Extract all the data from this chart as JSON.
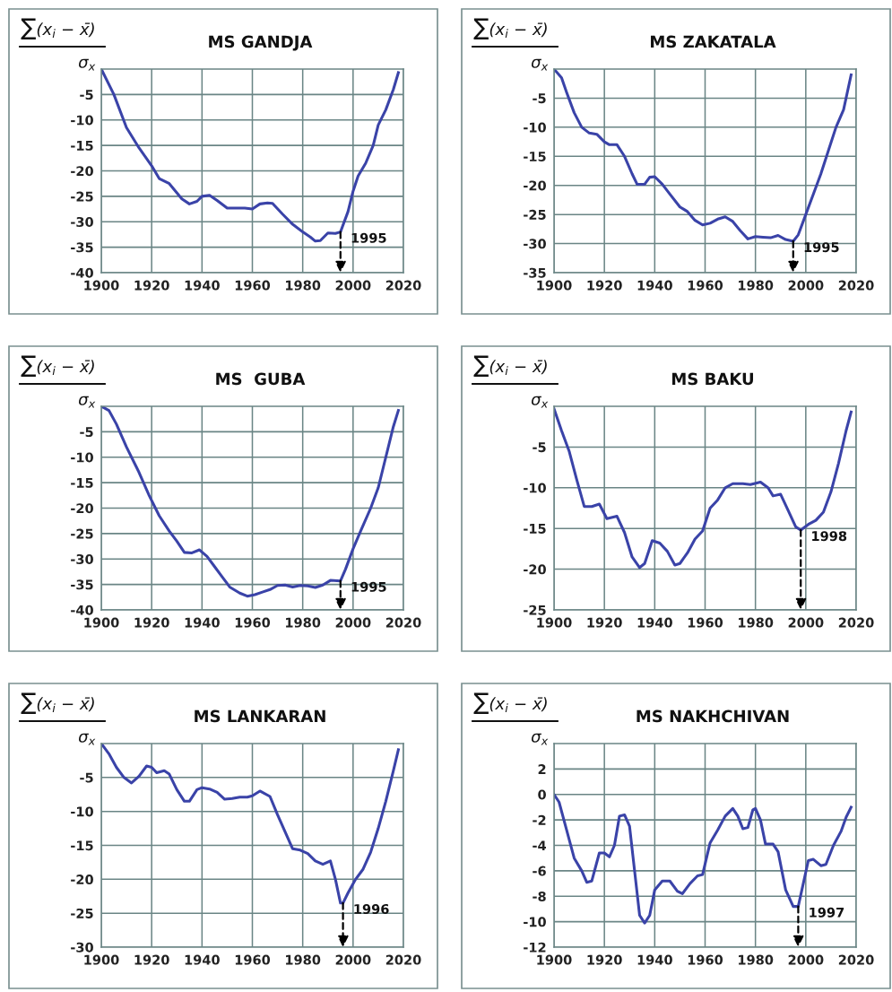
{
  "chart_data": [
    {
      "type": "line",
      "title": "MS GANDJA",
      "ylabel": "∑(x$_{i}$ − x̄)\nσ$_{x}$",
      "xlim": [
        1900,
        2020
      ],
      "xticks": [
        1900,
        1920,
        1940,
        1960,
        1980,
        2000,
        2020
      ],
      "ylim": [
        -40,
        0
      ],
      "yticks": [
        -40,
        -35,
        -30,
        -25,
        -20,
        -15,
        -10,
        -5
      ],
      "grid": true,
      "marker": "none",
      "line_style": "solid",
      "series": [
        {
          "color": "#3a43a8",
          "x": [
            1900,
            1905,
            1910,
            1915,
            1920,
            1923,
            1927,
            1932,
            1935,
            1938,
            1940,
            1943,
            1946,
            1950,
            1953,
            1957,
            1960,
            1963,
            1966,
            1968,
            1972,
            1976,
            1980,
            1983,
            1985,
            1987,
            1990,
            1993,
            1995,
            1998,
            2000,
            2002,
            2005,
            2008,
            2010,
            2013,
            2016,
            2018
          ],
          "values": [
            0,
            -5,
            -11.5,
            -15.5,
            -19,
            -21.5,
            -22.5,
            -25.5,
            -26.5,
            -26,
            -25,
            -24.8,
            -25.8,
            -27.3,
            -27.3,
            -27.3,
            -27.5,
            -26.5,
            -26.3,
            -26.4,
            -28.5,
            -30.5,
            -32,
            -33,
            -33.8,
            -33.7,
            -32.2,
            -32.3,
            -32,
            -28,
            -24,
            -21,
            -18.5,
            -15,
            -11,
            -8,
            -4,
            -0.7
          ]
        }
      ],
      "annotations": [
        {
          "text": "1995",
          "x": 1995,
          "y": -32
        }
      ]
    },
    {
      "type": "line",
      "title": "MS ZAKATALA",
      "ylabel": "∑(x$_{i}$ − x̄)\nσ$_{x}$",
      "xlim": [
        1900,
        2020
      ],
      "xticks": [
        1900,
        1920,
        1940,
        1960,
        1980,
        2000,
        2020
      ],
      "ylim": [
        -35,
        0
      ],
      "yticks": [
        -35,
        -30,
        -25,
        -20,
        -15,
        -10,
        -5
      ],
      "grid": true,
      "marker": "none",
      "line_style": "solid",
      "series": [
        {
          "color": "#3a43a8",
          "x": [
            1900,
            1903,
            1905,
            1908,
            1911,
            1914,
            1917,
            1920,
            1922,
            1925,
            1928,
            1931,
            1933,
            1936,
            1938,
            1940,
            1943,
            1946,
            1950,
            1953,
            1956,
            1959,
            1962,
            1965,
            1968,
            1971,
            1974,
            1977,
            1980,
            1983,
            1986,
            1989,
            1992,
            1995,
            1997,
            2000,
            2003,
            2006,
            2009,
            2012,
            2015,
            2018
          ],
          "values": [
            0,
            -1.5,
            -4,
            -7.5,
            -10,
            -11,
            -11.2,
            -12.5,
            -13,
            -13,
            -15,
            -18,
            -19.8,
            -19.8,
            -18.6,
            -18.5,
            -19.8,
            -21.5,
            -23.7,
            -24.5,
            -26,
            -26.8,
            -26.5,
            -25.8,
            -25.4,
            -26.2,
            -27.8,
            -29.2,
            -28.8,
            -28.9,
            -29,
            -28.6,
            -29.3,
            -29.6,
            -28.5,
            -25,
            -21.5,
            -18,
            -14,
            -10,
            -7,
            -1
          ]
        }
      ],
      "annotations": [
        {
          "text": "1995",
          "x": 1995,
          "y": -29.6
        }
      ]
    },
    {
      "type": "line",
      "title": "MS  GUBA",
      "ylabel": "∑(x$_{i}$ − x̄)\nσ$_{x}$",
      "xlim": [
        1900,
        2020
      ],
      "xticks": [
        1900,
        1920,
        1940,
        1960,
        1980,
        2000,
        2020
      ],
      "ylim": [
        -40,
        0
      ],
      "yticks": [
        -40,
        -35,
        -30,
        -25,
        -20,
        -15,
        -10,
        -5
      ],
      "grid": true,
      "marker": "none",
      "line_style": "solid",
      "series": [
        {
          "color": "#3a43a8",
          "x": [
            1900,
            1903,
            1906,
            1910,
            1915,
            1919,
            1923,
            1927,
            1930,
            1933,
            1936,
            1939,
            1942,
            1945,
            1948,
            1951,
            1955,
            1958,
            1961,
            1964,
            1967,
            1970,
            1973,
            1976,
            1979,
            1982,
            1985,
            1988,
            1991,
            1995,
            1997,
            2000,
            2003,
            2007,
            2010,
            2013,
            2016,
            2018
          ],
          "values": [
            0,
            -0.8,
            -3.5,
            -8,
            -13,
            -17.5,
            -21.5,
            -24.5,
            -26.5,
            -28.7,
            -28.8,
            -28.2,
            -29.5,
            -31.5,
            -33.5,
            -35.5,
            -36.7,
            -37.3,
            -37,
            -36.5,
            -36,
            -35.2,
            -35.1,
            -35.5,
            -35.2,
            -35.3,
            -35.6,
            -35.1,
            -34.2,
            -34.3,
            -32,
            -28,
            -24.5,
            -20,
            -16,
            -10,
            -4,
            -0.8
          ]
        }
      ],
      "annotations": [
        {
          "text": "1995",
          "x": 1995,
          "y": -34.3
        }
      ]
    },
    {
      "type": "line",
      "title": "MS BAKU",
      "ylabel": "∑(x$_{i}$ − x̄)\nσ$_{x}$",
      "xlim": [
        1900,
        2020
      ],
      "xticks": [
        1900,
        1920,
        1940,
        1960,
        1980,
        2000,
        2020
      ],
      "ylim": [
        -25,
        0
      ],
      "yticks": [
        -25,
        -20,
        -15,
        -10,
        -5
      ],
      "grid": true,
      "marker": "none",
      "line_style": "solid",
      "series": [
        {
          "color": "#3a43a8",
          "x": [
            1900,
            1903,
            1906,
            1909,
            1912,
            1915,
            1918,
            1921,
            1925,
            1928,
            1931,
            1934,
            1936,
            1939,
            1942,
            1945,
            1948,
            1950,
            1953,
            1956,
            1959,
            1962,
            1965,
            1968,
            1971,
            1975,
            1978,
            1982,
            1985,
            1987,
            1990,
            1993,
            1996,
            1998,
            2001,
            2004,
            2007,
            2010,
            2013,
            2016,
            2018
          ],
          "values": [
            -0.3,
            -3,
            -5.5,
            -9,
            -12.3,
            -12.3,
            -12,
            -13.8,
            -13.5,
            -15.5,
            -18.5,
            -19.8,
            -19.3,
            -16.5,
            -16.8,
            -17.8,
            -19.5,
            -19.3,
            -18,
            -16.3,
            -15.3,
            -12.5,
            -11.5,
            -10,
            -9.5,
            -9.5,
            -9.6,
            -9.3,
            -10,
            -11,
            -10.8,
            -12.8,
            -14.8,
            -15.2,
            -14.5,
            -14,
            -13,
            -10.5,
            -7,
            -3,
            -0.7
          ]
        }
      ],
      "annotations": [
        {
          "text": "1998",
          "x": 1998,
          "y": -15.2
        }
      ]
    },
    {
      "type": "line",
      "title": "MS LANKARAN",
      "ylabel": "∑(x$_{i}$ − x̄)\nσ$_{x}$",
      "xlim": [
        1900,
        2020
      ],
      "xticks": [
        1900,
        1920,
        1940,
        1960,
        1980,
        2000,
        2020
      ],
      "ylim": [
        -30,
        0
      ],
      "yticks": [
        -30,
        -25,
        -20,
        -15,
        -10,
        -5
      ],
      "grid": true,
      "marker": "none",
      "line_style": "solid",
      "series": [
        {
          "color": "#3a43a8",
          "x": [
            1900,
            1903,
            1906,
            1909,
            1912,
            1915,
            1918,
            1920,
            1922,
            1925,
            1927,
            1930,
            1933,
            1935,
            1938,
            1940,
            1943,
            1946,
            1949,
            1952,
            1955,
            1958,
            1960,
            1963,
            1967,
            1970,
            1973,
            1976,
            1979,
            1982,
            1985,
            1988,
            1991,
            1993,
            1995,
            1996,
            1998,
            2001,
            2004,
            2007,
            2010,
            2013,
            2016,
            2018
          ],
          "values": [
            0,
            -1.5,
            -3.5,
            -5,
            -5.8,
            -4.8,
            -3.3,
            -3.5,
            -4.3,
            -4,
            -4.5,
            -6.8,
            -8.5,
            -8.5,
            -6.8,
            -6.5,
            -6.7,
            -7.2,
            -8.2,
            -8.1,
            -7.9,
            -7.9,
            -7.7,
            -7,
            -7.8,
            -10.5,
            -13,
            -15.5,
            -15.7,
            -16.2,
            -17.3,
            -17.8,
            -17.3,
            -20,
            -23.5,
            -23.5,
            -22,
            -20,
            -18.5,
            -16,
            -12.5,
            -8.5,
            -4,
            -0.9
          ]
        }
      ],
      "annotations": [
        {
          "text": "1996",
          "x": 1996,
          "y": -23.5
        }
      ]
    },
    {
      "type": "line",
      "title": "MS NAKHCHIVAN",
      "ylabel": "∑(x$_{i}$ − x̄)\nσ$_{x}$",
      "xlim": [
        1900,
        2020
      ],
      "xticks": [
        1900,
        1920,
        1940,
        1960,
        1980,
        2000,
        2020
      ],
      "ylim": [
        -12,
        4
      ],
      "yticks": [
        -12,
        -10,
        -8,
        -6,
        -4,
        -2,
        0,
        2
      ],
      "grid": true,
      "marker": "none",
      "line_style": "solid",
      "series": [
        {
          "color": "#3a43a8",
          "x": [
            1900,
            1902,
            1905,
            1908,
            1911,
            1913,
            1915,
            1918,
            1920,
            1922,
            1924,
            1926,
            1928,
            1930,
            1932,
            1934,
            1936,
            1938,
            1940,
            1943,
            1946,
            1949,
            1951,
            1954,
            1957,
            1959,
            1962,
            1965,
            1968,
            1971,
            1973,
            1975,
            1977,
            1979,
            1980,
            1982,
            1984,
            1987,
            1989,
            1992,
            1995,
            1997,
            1999,
            2001,
            2003,
            2006,
            2008,
            2011,
            2014,
            2016,
            2018
          ],
          "values": [
            0,
            -0.6,
            -2.8,
            -5,
            -6,
            -6.9,
            -6.8,
            -4.6,
            -4.6,
            -4.9,
            -4,
            -1.7,
            -1.6,
            -2.5,
            -6,
            -9.5,
            -10.1,
            -9.5,
            -7.5,
            -6.8,
            -6.8,
            -7.6,
            -7.8,
            -7,
            -6.4,
            -6.3,
            -3.8,
            -2.8,
            -1.7,
            -1.1,
            -1.7,
            -2.7,
            -2.6,
            -1.2,
            -1.1,
            -2,
            -3.9,
            -3.9,
            -4.5,
            -7.5,
            -8.8,
            -8.8,
            -7,
            -5.2,
            -5.1,
            -5.6,
            -5.5,
            -4,
            -2.9,
            -1.8,
            -1
          ]
        }
      ],
      "annotations": [
        {
          "text": "1997",
          "x": 1997,
          "y": -8.8
        }
      ]
    }
  ]
}
